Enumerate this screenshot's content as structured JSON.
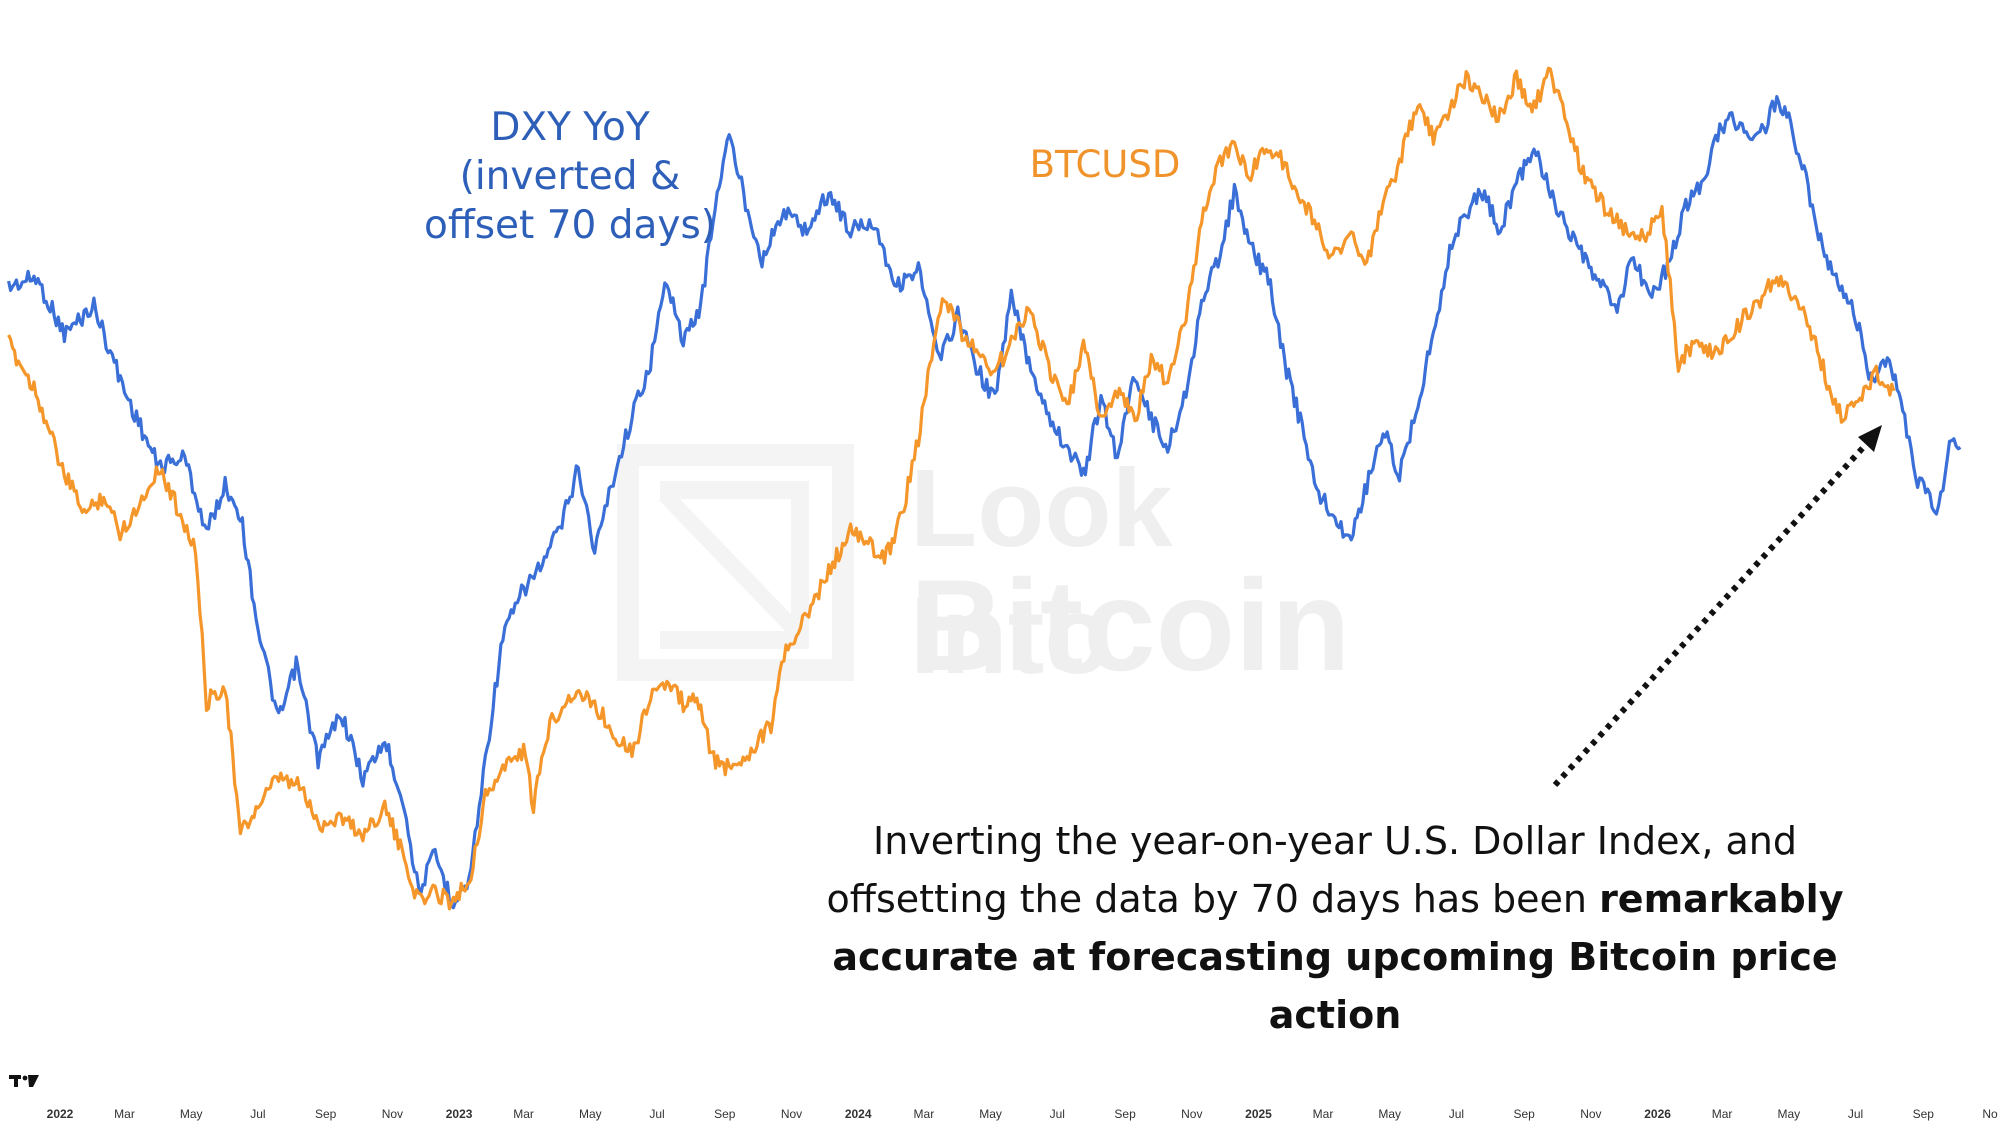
{
  "colors": {
    "dxy": "#3a6fd8",
    "btc": "#f5962a",
    "arrow": "#111111",
    "text_dark": "#111111",
    "dxy_label": "#2E5FB8",
    "btc_label": "#F0932B"
  },
  "labels": {
    "dxy_line1": "DXY YoY",
    "dxy_line2": "(inverted &",
    "dxy_line3": "offset 70 days)",
    "btc": "BTCUSD"
  },
  "annotation": {
    "line1": "Inverting the year-on-year U.S. Dollar Index, and",
    "line2_normal": "offsetting the data by 70 days has been ",
    "line2_bold": "remarkably",
    "line3_bold": "accurate at forecasting upcoming Bitcoin price action"
  },
  "watermark": {
    "line1": "Look Into",
    "line2": "Bitcoin"
  },
  "icons": {
    "brand_logo": "tradingview-logo-icon",
    "watermark_logo": "lookintobitcoin-logo-icon",
    "arrow": "dotted-arrow-icon"
  },
  "chart_data": {
    "type": "line",
    "title": "",
    "xlabel": "",
    "ylabel": "",
    "grid": false,
    "x_ticks": [
      {
        "label": "2022",
        "date": "2022-01-01",
        "year": true
      },
      {
        "label": "Mar",
        "date": "2022-03-01"
      },
      {
        "label": "May",
        "date": "2022-05-01"
      },
      {
        "label": "Jul",
        "date": "2022-07-01"
      },
      {
        "label": "Sep",
        "date": "2022-09-01"
      },
      {
        "label": "Nov",
        "date": "2022-11-01"
      },
      {
        "label": "2023",
        "date": "2023-01-01",
        "year": true
      },
      {
        "label": "Mar",
        "date": "2023-03-01"
      },
      {
        "label": "May",
        "date": "2023-05-01"
      },
      {
        "label": "Jul",
        "date": "2023-07-01"
      },
      {
        "label": "Sep",
        "date": "2023-09-01"
      },
      {
        "label": "Nov",
        "date": "2023-11-01"
      },
      {
        "label": "2024",
        "date": "2024-01-01",
        "year": true
      },
      {
        "label": "Mar",
        "date": "2024-03-01"
      },
      {
        "label": "May",
        "date": "2024-05-01"
      },
      {
        "label": "Jul",
        "date": "2024-07-01"
      },
      {
        "label": "Sep",
        "date": "2024-09-01"
      },
      {
        "label": "Nov",
        "date": "2024-11-01"
      },
      {
        "label": "2025",
        "date": "2025-01-01",
        "year": true
      },
      {
        "label": "Mar",
        "date": "2025-03-01"
      },
      {
        "label": "May",
        "date": "2025-05-01"
      },
      {
        "label": "Jul",
        "date": "2025-07-01"
      },
      {
        "label": "Sep",
        "date": "2025-09-01"
      },
      {
        "label": "Nov",
        "date": "2025-11-01"
      },
      {
        "label": "2026",
        "date": "2026-01-01",
        "year": true
      },
      {
        "label": "Mar",
        "date": "2026-03-01"
      },
      {
        "label": "May",
        "date": "2026-05-01"
      },
      {
        "label": "Jul",
        "date": "2026-07-01"
      },
      {
        "label": "Sep",
        "date": "2026-09-01"
      },
      {
        "label": "No",
        "date": "2026-11-01"
      }
    ],
    "y_range": [
      0,
      100
    ],
    "series": [
      {
        "name": "DXY YoY",
        "color": "#3a6fd8",
        "points": [
          [
            "2021-11-15",
            76
          ],
          [
            "2021-12-10",
            77
          ],
          [
            "2022-01-05",
            71
          ],
          [
            "2022-02-01",
            74
          ],
          [
            "2022-03-01",
            65
          ],
          [
            "2022-04-01",
            57
          ],
          [
            "2022-04-25",
            58
          ],
          [
            "2022-05-15",
            50
          ],
          [
            "2022-06-01",
            55
          ],
          [
            "2022-06-15",
            52
          ],
          [
            "2022-07-01",
            40
          ],
          [
            "2022-07-20",
            30
          ],
          [
            "2022-08-05",
            36
          ],
          [
            "2022-08-25",
            26
          ],
          [
            "2022-09-15",
            31
          ],
          [
            "2022-10-05",
            24
          ],
          [
            "2022-10-25",
            28
          ],
          [
            "2022-11-10",
            22
          ],
          [
            "2022-11-25",
            12
          ],
          [
            "2022-12-10",
            16
          ],
          [
            "2022-12-25",
            11
          ],
          [
            "2023-01-10",
            13
          ],
          [
            "2023-01-25",
            26
          ],
          [
            "2023-02-10",
            39
          ],
          [
            "2023-03-01",
            44
          ],
          [
            "2023-03-20",
            47
          ],
          [
            "2023-04-05",
            51
          ],
          [
            "2023-04-20",
            57
          ],
          [
            "2023-05-05",
            48
          ],
          [
            "2023-05-20",
            55
          ],
          [
            "2023-06-10",
            63
          ],
          [
            "2023-06-25",
            68
          ],
          [
            "2023-07-10",
            77
          ],
          [
            "2023-07-25",
            70
          ],
          [
            "2023-08-10",
            74
          ],
          [
            "2023-08-25",
            86
          ],
          [
            "2023-09-05",
            92
          ],
          [
            "2023-09-20",
            85
          ],
          [
            "2023-10-05",
            79
          ],
          [
            "2023-10-25",
            84
          ],
          [
            "2023-11-15",
            82
          ],
          [
            "2023-12-05",
            86
          ],
          [
            "2023-12-25",
            82
          ],
          [
            "2024-01-15",
            83
          ],
          [
            "2024-02-05",
            76
          ],
          [
            "2024-02-25",
            78
          ],
          [
            "2024-03-15",
            68
          ],
          [
            "2024-04-01",
            73
          ],
          [
            "2024-04-20",
            67
          ],
          [
            "2024-05-05",
            64
          ],
          [
            "2024-05-20",
            75
          ],
          [
            "2024-06-05",
            68
          ],
          [
            "2024-06-25",
            62
          ],
          [
            "2024-07-10",
            59
          ],
          [
            "2024-07-25",
            56
          ],
          [
            "2024-08-10",
            64
          ],
          [
            "2024-08-25",
            58
          ],
          [
            "2024-09-10",
            67
          ],
          [
            "2024-09-25",
            62
          ],
          [
            "2024-10-10",
            59
          ],
          [
            "2024-10-25",
            64
          ],
          [
            "2024-11-10",
            74
          ],
          [
            "2024-11-25",
            79
          ],
          [
            "2024-12-10",
            86
          ],
          [
            "2024-12-25",
            80
          ],
          [
            "2025-01-10",
            77
          ],
          [
            "2025-01-25",
            68
          ],
          [
            "2025-02-10",
            61
          ],
          [
            "2025-02-25",
            54
          ],
          [
            "2025-03-10",
            52
          ],
          [
            "2025-03-25",
            49
          ],
          [
            "2025-04-10",
            55
          ],
          [
            "2025-04-25",
            61
          ],
          [
            "2025-05-10",
            56
          ],
          [
            "2025-05-25",
            63
          ],
          [
            "2025-06-10",
            71
          ],
          [
            "2025-06-25",
            80
          ],
          [
            "2025-07-10",
            84
          ],
          [
            "2025-07-25",
            86
          ],
          [
            "2025-08-10",
            82
          ],
          [
            "2025-08-25",
            87
          ],
          [
            "2025-09-10",
            91
          ],
          [
            "2025-09-25",
            86
          ],
          [
            "2025-10-10",
            82
          ],
          [
            "2025-10-25",
            79
          ],
          [
            "2025-11-10",
            76
          ],
          [
            "2025-11-25",
            74
          ],
          [
            "2025-12-10",
            79
          ],
          [
            "2025-12-25",
            75
          ],
          [
            "2026-01-10",
            78
          ],
          [
            "2026-01-25",
            84
          ],
          [
            "2026-02-10",
            87
          ],
          [
            "2026-02-25",
            92
          ],
          [
            "2026-03-10",
            94
          ],
          [
            "2026-03-25",
            92
          ],
          [
            "2026-04-10",
            93
          ],
          [
            "2026-04-20",
            96
          ],
          [
            "2026-05-01",
            94
          ],
          [
            "2026-05-15",
            88
          ],
          [
            "2026-06-01",
            80
          ],
          [
            "2026-06-15",
            76
          ],
          [
            "2026-07-01",
            73
          ],
          [
            "2026-07-15",
            66
          ],
          [
            "2026-08-01",
            68
          ],
          [
            "2026-08-15",
            62
          ],
          [
            "2026-08-25",
            56
          ],
          [
            "2026-09-05",
            54
          ],
          [
            "2026-09-15",
            52
          ],
          [
            "2026-09-25",
            60
          ],
          [
            "2026-10-05",
            59
          ]
        ]
      },
      {
        "name": "BTCUSD",
        "color": "#f5962a",
        "points": [
          [
            "2021-11-15",
            70
          ],
          [
            "2021-12-10",
            65
          ],
          [
            "2022-01-05",
            56
          ],
          [
            "2022-01-25",
            52
          ],
          [
            "2022-02-10",
            54
          ],
          [
            "2022-02-25",
            50
          ],
          [
            "2022-03-15",
            53
          ],
          [
            "2022-04-01",
            57
          ],
          [
            "2022-04-25",
            51
          ],
          [
            "2022-05-05",
            48
          ],
          [
            "2022-05-15",
            32
          ],
          [
            "2022-06-01",
            34
          ],
          [
            "2022-06-15",
            18
          ],
          [
            "2022-07-01",
            21
          ],
          [
            "2022-07-20",
            24
          ],
          [
            "2022-08-10",
            23
          ],
          [
            "2022-08-25",
            19
          ],
          [
            "2022-09-15",
            20
          ],
          [
            "2022-10-05",
            18
          ],
          [
            "2022-10-25",
            21
          ],
          [
            "2022-11-10",
            16
          ],
          [
            "2022-11-25",
            11
          ],
          [
            "2022-12-10",
            12
          ],
          [
            "2022-12-25",
            11
          ],
          [
            "2023-01-10",
            13
          ],
          [
            "2023-01-25",
            22
          ],
          [
            "2023-02-10",
            25
          ],
          [
            "2023-03-01",
            27
          ],
          [
            "2023-03-10",
            21
          ],
          [
            "2023-03-25",
            30
          ],
          [
            "2023-04-15",
            33
          ],
          [
            "2023-05-05",
            32
          ],
          [
            "2023-05-20",
            29
          ],
          [
            "2023-06-10",
            27
          ],
          [
            "2023-06-25",
            33
          ],
          [
            "2023-07-10",
            34
          ],
          [
            "2023-07-25",
            32
          ],
          [
            "2023-08-10",
            32
          ],
          [
            "2023-08-20",
            26
          ],
          [
            "2023-09-05",
            25
          ],
          [
            "2023-09-25",
            27
          ],
          [
            "2023-10-15",
            30
          ],
          [
            "2023-10-25",
            37
          ],
          [
            "2023-11-15",
            41
          ],
          [
            "2023-12-05",
            46
          ],
          [
            "2023-12-25",
            50
          ],
          [
            "2024-01-10",
            49
          ],
          [
            "2024-01-25",
            47
          ],
          [
            "2024-02-10",
            52
          ],
          [
            "2024-02-25",
            60
          ],
          [
            "2024-03-10",
            70
          ],
          [
            "2024-03-20",
            75
          ],
          [
            "2024-04-05",
            71
          ],
          [
            "2024-04-20",
            69
          ],
          [
            "2024-05-05",
            67
          ],
          [
            "2024-05-20",
            70
          ],
          [
            "2024-06-05",
            74
          ],
          [
            "2024-06-25",
            67
          ],
          [
            "2024-07-10",
            63
          ],
          [
            "2024-07-25",
            70
          ],
          [
            "2024-08-10",
            62
          ],
          [
            "2024-08-25",
            65
          ],
          [
            "2024-09-10",
            62
          ],
          [
            "2024-09-25",
            68
          ],
          [
            "2024-10-10",
            66
          ],
          [
            "2024-10-25",
            72
          ],
          [
            "2024-11-10",
            83
          ],
          [
            "2024-11-25",
            89
          ],
          [
            "2024-12-10",
            91
          ],
          [
            "2024-12-25",
            88
          ],
          [
            "2025-01-10",
            91
          ],
          [
            "2025-01-25",
            89
          ],
          [
            "2025-02-10",
            85
          ],
          [
            "2025-02-25",
            82
          ],
          [
            "2025-03-10",
            79
          ],
          [
            "2025-03-25",
            82
          ],
          [
            "2025-04-10",
            78
          ],
          [
            "2025-04-25",
            85
          ],
          [
            "2025-05-10",
            89
          ],
          [
            "2025-05-25",
            95
          ],
          [
            "2025-06-10",
            92
          ],
          [
            "2025-06-25",
            95
          ],
          [
            "2025-07-10",
            98
          ],
          [
            "2025-07-25",
            96
          ],
          [
            "2025-08-10",
            94
          ],
          [
            "2025-08-25",
            98
          ],
          [
            "2025-09-10",
            95
          ],
          [
            "2025-09-25",
            99
          ],
          [
            "2025-10-10",
            93
          ],
          [
            "2025-10-25",
            88
          ],
          [
            "2025-11-10",
            85
          ],
          [
            "2025-11-25",
            83
          ],
          [
            "2025-12-10",
            81
          ],
          [
            "2025-12-25",
            82
          ],
          [
            "2026-01-05",
            84
          ],
          [
            "2026-01-20",
            68
          ],
          [
            "2026-02-05",
            70
          ],
          [
            "2026-02-25",
            69
          ],
          [
            "2026-03-15",
            72
          ],
          [
            "2026-04-01",
            74
          ],
          [
            "2026-04-20",
            77
          ],
          [
            "2026-05-05",
            75
          ],
          [
            "2026-05-20",
            72
          ],
          [
            "2026-06-05",
            66
          ],
          [
            "2026-06-20",
            62
          ],
          [
            "2026-07-05",
            64
          ],
          [
            "2026-07-20",
            67
          ],
          [
            "2026-08-05",
            65
          ]
        ]
      }
    ]
  }
}
